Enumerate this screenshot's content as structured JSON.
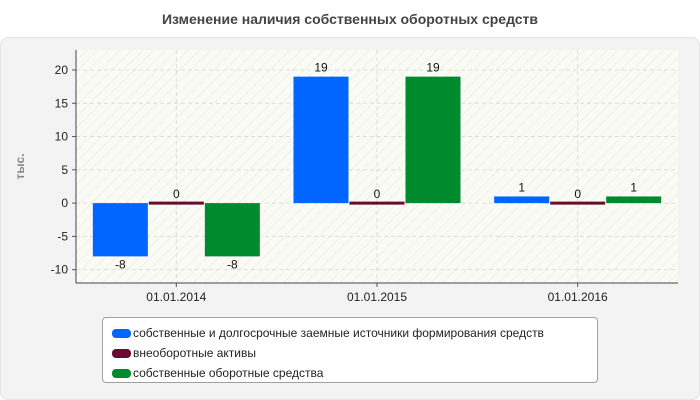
{
  "chart_data": {
    "type": "bar",
    "title": "Изменение наличия собственных оборотных средств",
    "ylabel": "тыс.",
    "xlabel": "",
    "categories": [
      "01.01.2014",
      "01.01.2015",
      "01.01.2016"
    ],
    "ylim": [
      -12,
      23
    ],
    "yticks": [
      -10,
      -5,
      0,
      5,
      10,
      15,
      20
    ],
    "grid": true,
    "legend_position": "bottom",
    "series": [
      {
        "name": "собственные и долгосрочные заемные источники формирования средств",
        "color": "#0066ff",
        "values": [
          -8,
          19,
          1
        ]
      },
      {
        "name": "внеоборотные активы",
        "color": "#6b0a2e",
        "values": [
          0,
          0,
          0
        ]
      },
      {
        "name": "собственные оборотные средства",
        "color": "#008a2e",
        "values": [
          -8,
          19,
          1
        ]
      }
    ]
  }
}
